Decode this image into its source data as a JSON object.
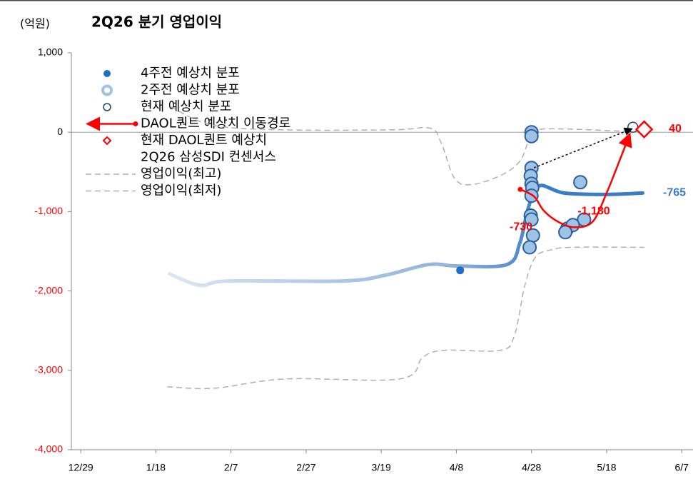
{
  "chart_data": {
    "type": "combo",
    "title": "2Q26 분기 영업이익",
    "y_label": "(억원)",
    "xlim": [
      -2.5,
      163
    ],
    "ylim": [
      -4000,
      1000
    ],
    "xticks": [
      {
        "value": 0,
        "label": "12/29"
      },
      {
        "value": 20,
        "label": "1/18"
      },
      {
        "value": 40,
        "label": "2/7"
      },
      {
        "value": 60,
        "label": "2/27"
      },
      {
        "value": 80,
        "label": "3/19"
      },
      {
        "value": 100,
        "label": "4/8"
      },
      {
        "value": 120,
        "label": "4/28"
      },
      {
        "value": 140,
        "label": "5/18"
      },
      {
        "value": 160,
        "label": "6/7"
      }
    ],
    "yticks": [
      {
        "value": 1000,
        "label": "1,000"
      },
      0,
      {
        "value": -1000,
        "label": "-1,000"
      },
      {
        "value": -2000,
        "label": "-2,000"
      },
      {
        "value": -3000,
        "label": "-3,000"
      },
      {
        "value": -4000,
        "label": "-4,000"
      }
    ],
    "series": [
      {
        "name": "4주전 예상치 분포",
        "kind": "dot",
        "color": "#1f6fc5",
        "x": [
          101
        ],
        "values": [
          -1740
        ]
      },
      {
        "name": "2주전 예상치 분포",
        "kind": "ring",
        "color": "#9dc3e6",
        "x": [
          120,
          120,
          120,
          119.8,
          120,
          120.2,
          120,
          119.8,
          120,
          120.4,
          119.5,
          133,
          134,
          129.5,
          131,
          129
        ],
        "values": [
          0,
          -50,
          -450,
          -550,
          -650,
          -700,
          -800,
          -1050,
          -1100,
          -1300,
          -1450,
          -630,
          -1100,
          -1216,
          -1170,
          -1260
        ]
      },
      {
        "name": "현재 예상치 분포",
        "kind": "smallring",
        "color": "#1f3f6f",
        "x": [
          147
        ],
        "values": [
          63
        ]
      },
      {
        "name": "DAOL퀀트 예상치 이동경로",
        "kind": "path",
        "color": "#ff0000",
        "x": [
          117,
          120.7,
          123.3,
          127,
          131.5,
          136.3,
          140,
          143.8,
          146
        ],
        "values": [
          -720,
          -810,
          -990,
          -1126,
          -1198,
          -1126,
          -766,
          -315,
          -45
        ]
      },
      {
        "name": "현재 DAOL퀀트 예상치",
        "kind": "diamond",
        "color": "#ff0000",
        "x": [
          150
        ],
        "values": [
          36
        ]
      },
      {
        "name": "2Q26 삼성SDI 컨센서스",
        "kind": "consensus",
        "color": "#3a7cc8",
        "x": [
          23.6,
          31.7,
          39.4,
          69.8,
          81.2,
          92.6,
          100.2,
          113.5,
          116.9,
          119.2,
          122,
          128.7,
          140.1,
          149.6
        ],
        "values": [
          -1784,
          -1928,
          -1874,
          -1874,
          -1800,
          -1667,
          -1685,
          -1667,
          -1396,
          -946,
          -676,
          -766,
          -784,
          -766
        ]
      },
      {
        "name": "영업이익(최고)",
        "kind": "dash",
        "color": "#b0b0b0",
        "x": [
          24,
          35,
          54,
          83,
          93,
          96,
          99.5,
          104,
          112,
          117,
          119.5,
          123,
          150
        ],
        "values": [
          320,
          90,
          30,
          30,
          50,
          -140,
          -580,
          -660,
          -540,
          -360,
          -90,
          40,
          0
        ]
      },
      {
        "name": "영업이익(최저)",
        "kind": "dash",
        "color": "#b0b0b0",
        "x": [
          23,
          35.5,
          54.5,
          85,
          91,
          96.6,
          111.6,
          115.4,
          118.2,
          121,
          124.9,
          130.6,
          150
        ],
        "values": [
          -3207,
          -3225,
          -3108,
          -3108,
          -2838,
          -2748,
          -2748,
          -2568,
          -1937,
          -1577,
          -1486,
          -1450,
          -1450
        ]
      }
    ],
    "annotations": [
      {
        "label": "-730",
        "value": -730,
        "color": "#ff0000"
      },
      {
        "label": "40",
        "value": 40,
        "color": "#ff0000"
      },
      {
        "label": "-765",
        "value": -765,
        "color": "#3a7cc8"
      },
      {
        "label": "-1,180",
        "value": -1180,
        "color": "#ff0000"
      }
    ]
  }
}
